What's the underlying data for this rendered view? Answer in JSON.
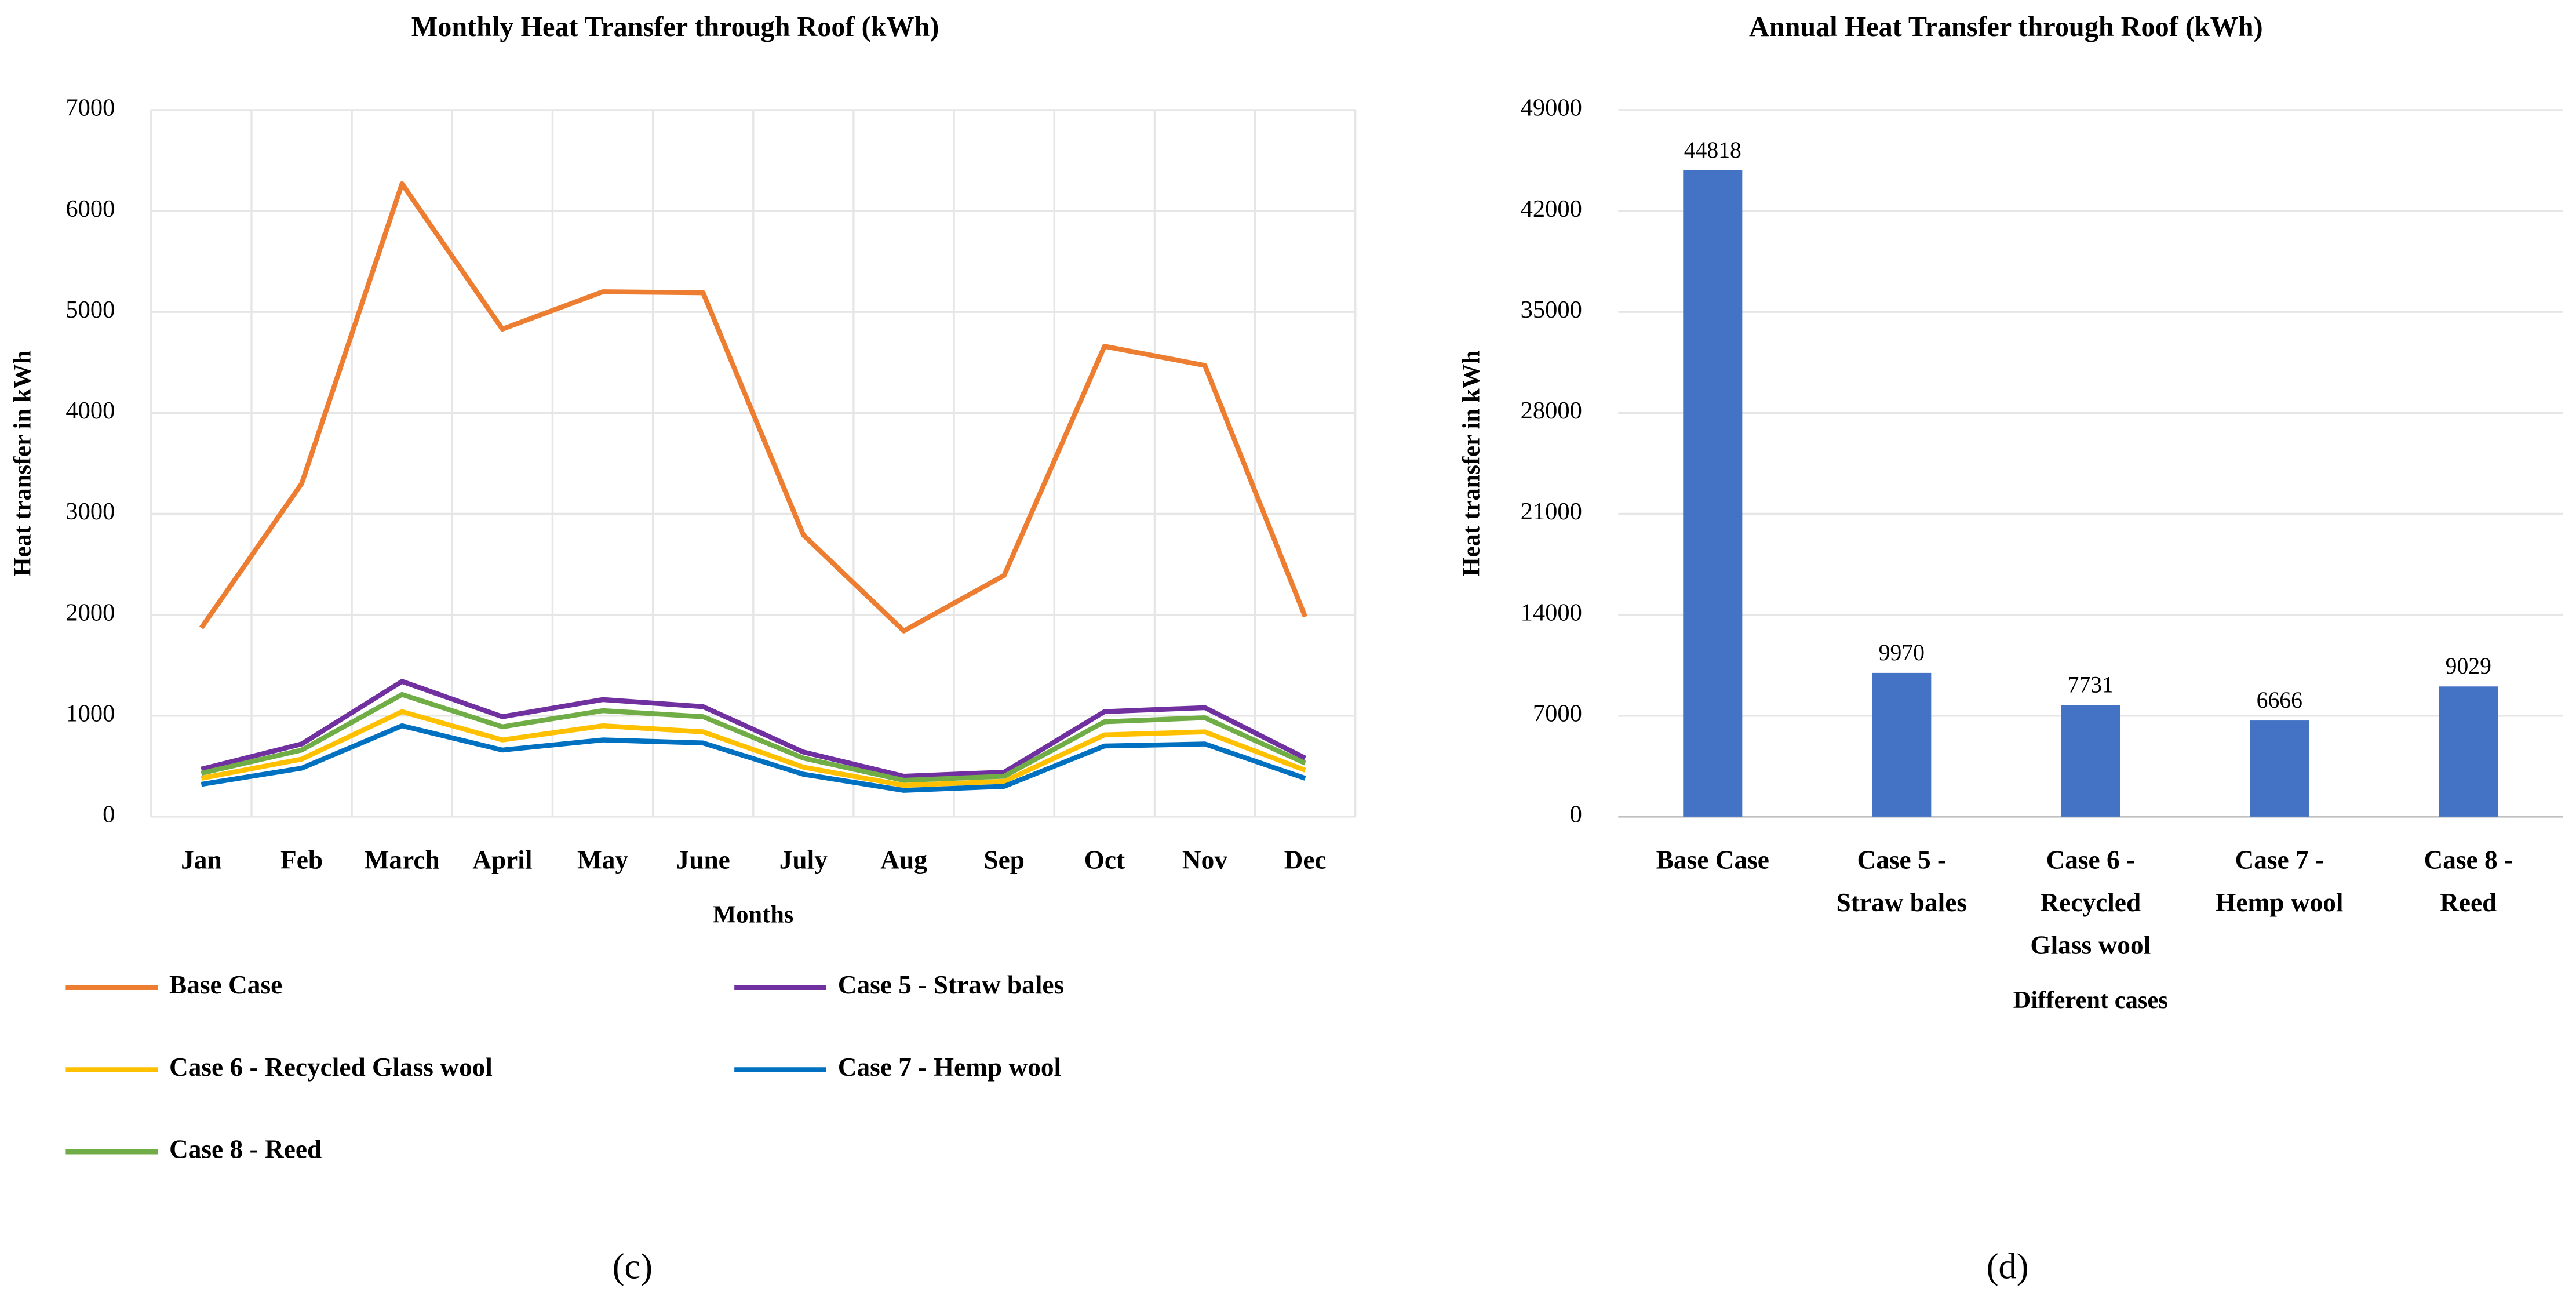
{
  "chart_data": [
    {
      "type": "line",
      "title": "Monthly Heat Transfer through Roof (kWh)",
      "xlabel": "Months",
      "ylabel": "Heat transfer in kWh",
      "caption": "(c)",
      "categories": [
        "Jan",
        "Feb",
        "March",
        "April",
        "May",
        "June",
        "July",
        "Aug",
        "Sep",
        "Oct",
        "Nov",
        "Dec"
      ],
      "series": [
        {
          "name": "Base Case",
          "color": "#ED7D31",
          "values": [
            1870,
            3300,
            6270,
            4830,
            5200,
            5190,
            2790,
            1840,
            2390,
            4660,
            4470,
            1980
          ]
        },
        {
          "name": "Case 5 - Straw bales",
          "color": "#7030A0",
          "values": [
            470,
            720,
            1340,
            990,
            1160,
            1090,
            640,
            400,
            440,
            1040,
            1080,
            580
          ]
        },
        {
          "name": "Case 6 - Recycled Glass wool",
          "color": "#FFC000",
          "values": [
            380,
            570,
            1040,
            760,
            900,
            840,
            490,
            310,
            350,
            810,
            840,
            460
          ]
        },
        {
          "name": "Case 7 - Hemp wool",
          "color": "#0070C0",
          "values": [
            320,
            480,
            900,
            660,
            760,
            730,
            420,
            260,
            300,
            700,
            720,
            380
          ]
        },
        {
          "name": "Case 8 - Reed",
          "color": "#70AD47",
          "values": [
            430,
            660,
            1210,
            890,
            1050,
            990,
            580,
            360,
            400,
            940,
            980,
            530
          ]
        }
      ],
      "ylim": [
        0,
        7000
      ],
      "yticks": [
        0,
        1000,
        2000,
        3000,
        4000,
        5000,
        6000,
        7000
      ],
      "grid": true,
      "legend": "bottom"
    },
    {
      "type": "bar",
      "title": "Annual Heat Transfer through Roof (kWh)",
      "xlabel": "Different cases",
      "ylabel": "Heat transfer in kWh",
      "caption": "(d)",
      "categories": [
        "Base Case",
        "Case 5 - Straw bales",
        "Case 6 - Recycled Glass wool",
        "Case 7 - Hemp wool",
        "Case 8 - Reed"
      ],
      "values": [
        44818,
        9970,
        7731,
        6666,
        9029
      ],
      "color": "#4472C4",
      "ylim": [
        0,
        49000
      ],
      "yticks": [
        0,
        7000,
        14000,
        21000,
        28000,
        35000,
        42000,
        49000
      ],
      "grid": true
    }
  ]
}
